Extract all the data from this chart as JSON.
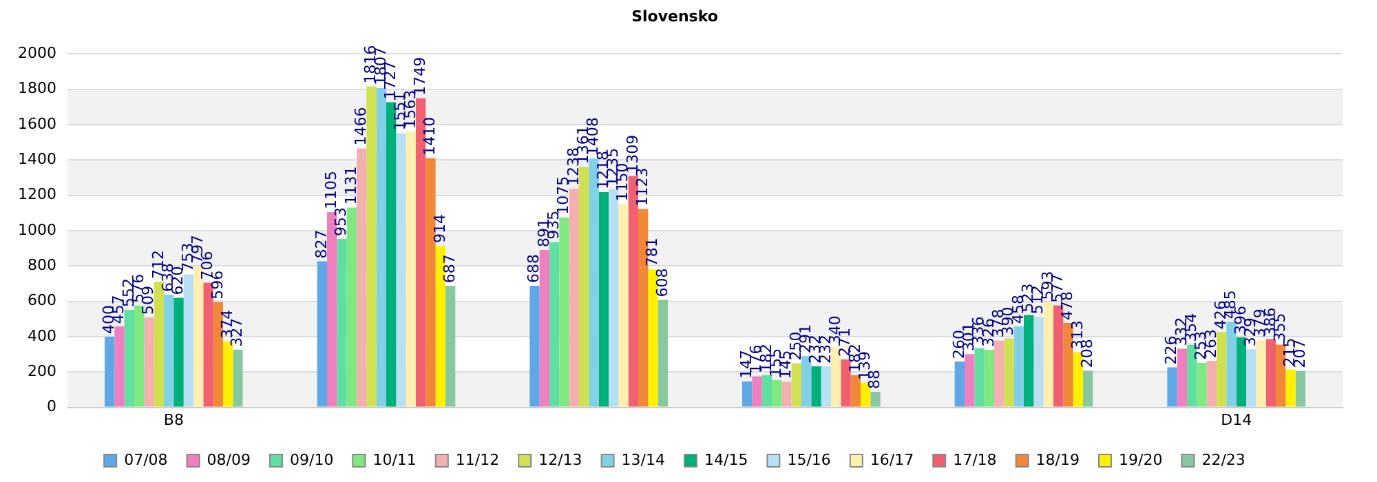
{
  "chart_data": {
    "type": "bar",
    "title": "Slovensko",
    "categories": [
      "B8",
      null,
      null,
      null,
      null,
      "D14"
    ],
    "ylim": [
      0,
      2000
    ],
    "yticks": [
      0,
      200,
      400,
      600,
      800,
      1000,
      1200,
      1400,
      1600,
      1800,
      2000
    ],
    "grid": "y",
    "legend": "bottom",
    "data_labels": true,
    "series": [
      {
        "name": "07/08",
        "color": "#5fa8e8",
        "values": [
          400,
          827,
          688,
          147,
          260,
          226
        ]
      },
      {
        "name": "08/09",
        "color": "#f07fbf",
        "values": [
          457,
          1105,
          891,
          176,
          301,
          332
        ]
      },
      {
        "name": "09/10",
        "color": "#5fe0a0",
        "values": [
          552,
          953,
          935,
          182,
          336,
          354
        ]
      },
      {
        "name": "10/11",
        "color": "#80e880",
        "values": [
          576,
          1131,
          1075,
          155,
          326,
          253
        ]
      },
      {
        "name": "11/12",
        "color": "#f4b0b0",
        "values": [
          509,
          1466,
          1238,
          145,
          378,
          263
        ]
      },
      {
        "name": "12/13",
        "color": "#d0e050",
        "values": [
          712,
          1816,
          1361,
          250,
          390,
          426
        ]
      },
      {
        "name": "13/14",
        "color": "#80d0e8",
        "values": [
          638,
          1807,
          1408,
          291,
          458,
          485
        ]
      },
      {
        "name": "14/15",
        "color": "#00b07a",
        "values": [
          620,
          1727,
          1218,
          232,
          523,
          396
        ]
      },
      {
        "name": "15/16",
        "color": "#b8e0f4",
        "values": [
          753,
          1551,
          1235,
          232,
          512,
          329
        ]
      },
      {
        "name": "16/17",
        "color": "#fff0b0",
        "values": [
          797,
          1563,
          1150,
          340,
          593,
          379
        ]
      },
      {
        "name": "17/18",
        "color": "#f06070",
        "values": [
          706,
          1749,
          1309,
          271,
          577,
          386
        ]
      },
      {
        "name": "18/19",
        "color": "#f08838",
        "values": [
          596,
          1410,
          1123,
          182,
          478,
          355
        ]
      },
      {
        "name": "19/20",
        "color": "#fff000",
        "values": [
          374,
          914,
          781,
          139,
          313,
          215
        ]
      },
      {
        "name": "22/23",
        "color": "#88c8a0",
        "values": [
          327,
          687,
          608,
          88,
          208,
          207
        ]
      }
    ]
  }
}
